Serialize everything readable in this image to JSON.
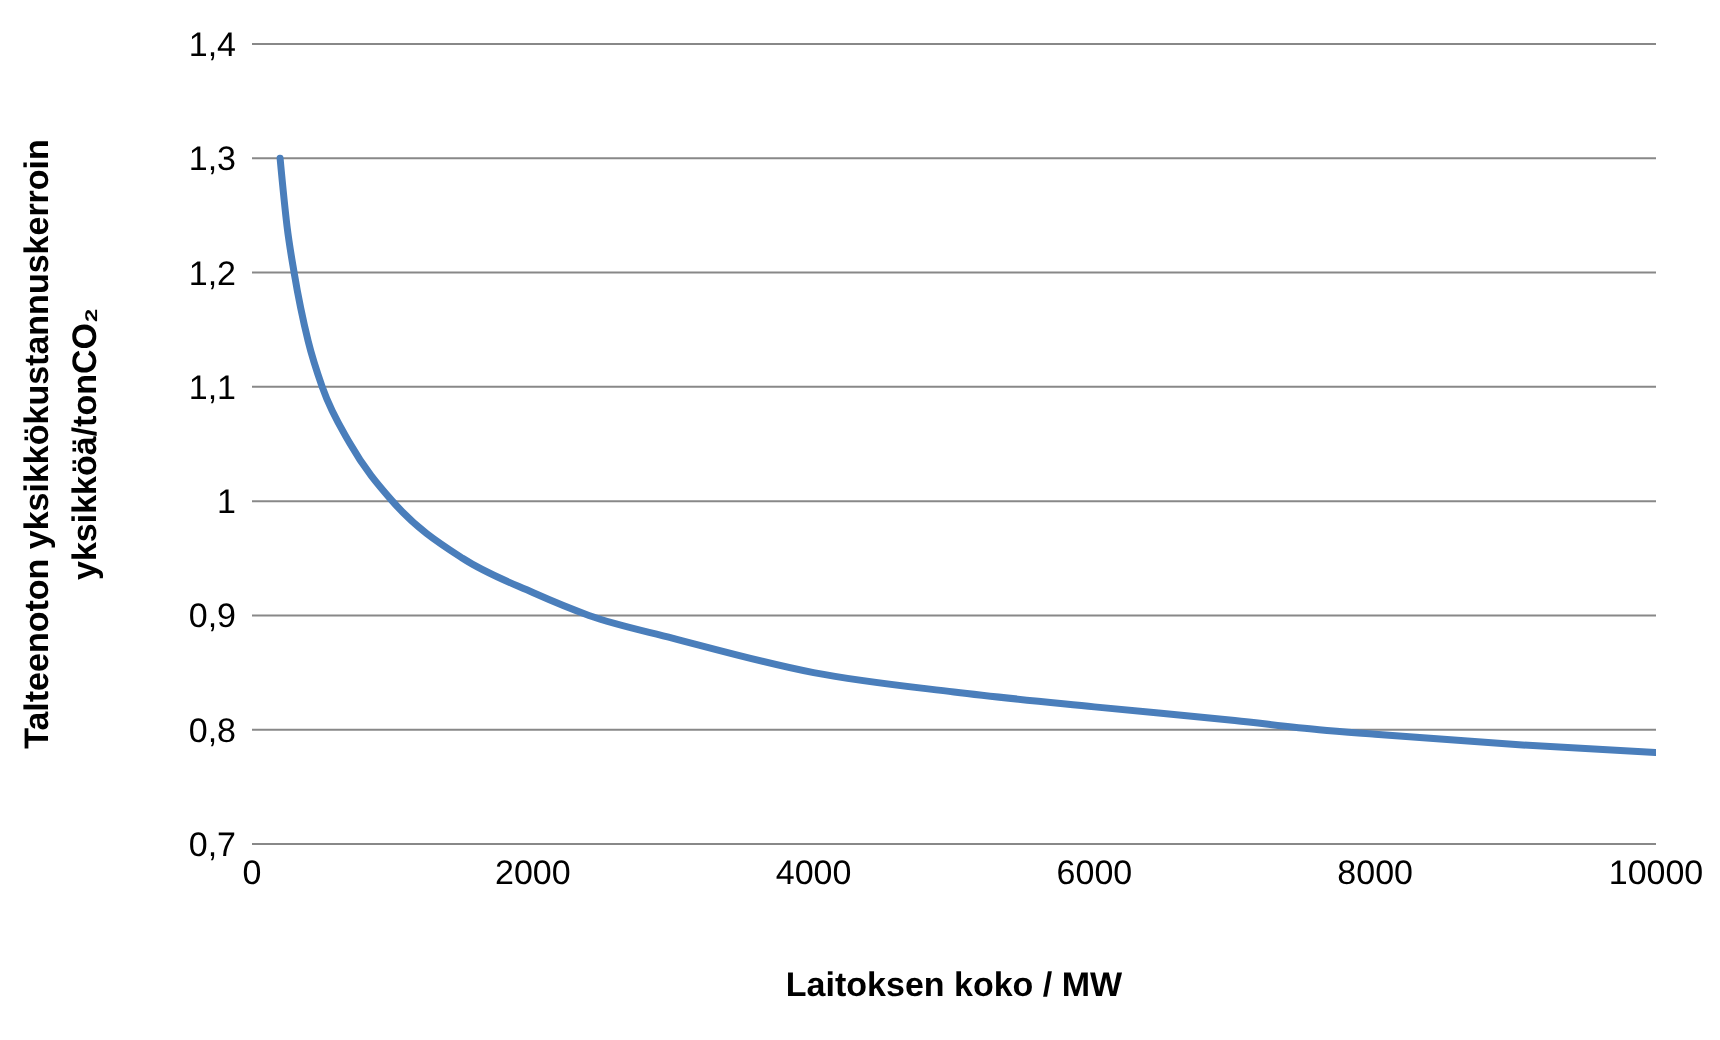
{
  "chart_data": {
    "type": "line",
    "xlabel": "Laitoksen koko / MW",
    "ylabel": "Talteenoton yksikkökustannuskerroin\nyksikköä/tonCO₂",
    "x": [
      200,
      250,
      300,
      400,
      500,
      700,
      1000,
      1500,
      2000,
      2400,
      3000,
      4000,
      5000,
      6000,
      7000,
      7600,
      8000,
      9000,
      10000
    ],
    "series": [
      {
        "color": "#4a7ebb",
        "values": [
          1.3,
          1.24,
          1.2,
          1.14,
          1.1,
          1.05,
          1.0,
          0.95,
          0.92,
          0.9,
          0.88,
          0.85,
          0.833,
          0.82,
          0.808,
          0.8,
          0.796,
          0.787,
          0.78
        ]
      }
    ],
    "xlim": [
      0,
      10000
    ],
    "xticks": [
      0,
      2000,
      4000,
      6000,
      8000,
      10000
    ],
    "ylim": [
      0.7,
      1.4
    ],
    "yticks": [
      {
        "value": 0.7,
        "label": "0,7"
      },
      {
        "value": 0.8,
        "label": "0,8"
      },
      {
        "value": 0.9,
        "label": "0,9"
      },
      {
        "value": 1.0,
        "label": "1"
      },
      {
        "value": 1.1,
        "label": "1,1"
      },
      {
        "value": 1.2,
        "label": "1,2"
      },
      {
        "value": 1.3,
        "label": "1,3"
      },
      {
        "value": 1.4,
        "label": "1,4"
      }
    ],
    "grid": "y",
    "legend": false,
    "marker": "none",
    "line_style": "solid"
  }
}
